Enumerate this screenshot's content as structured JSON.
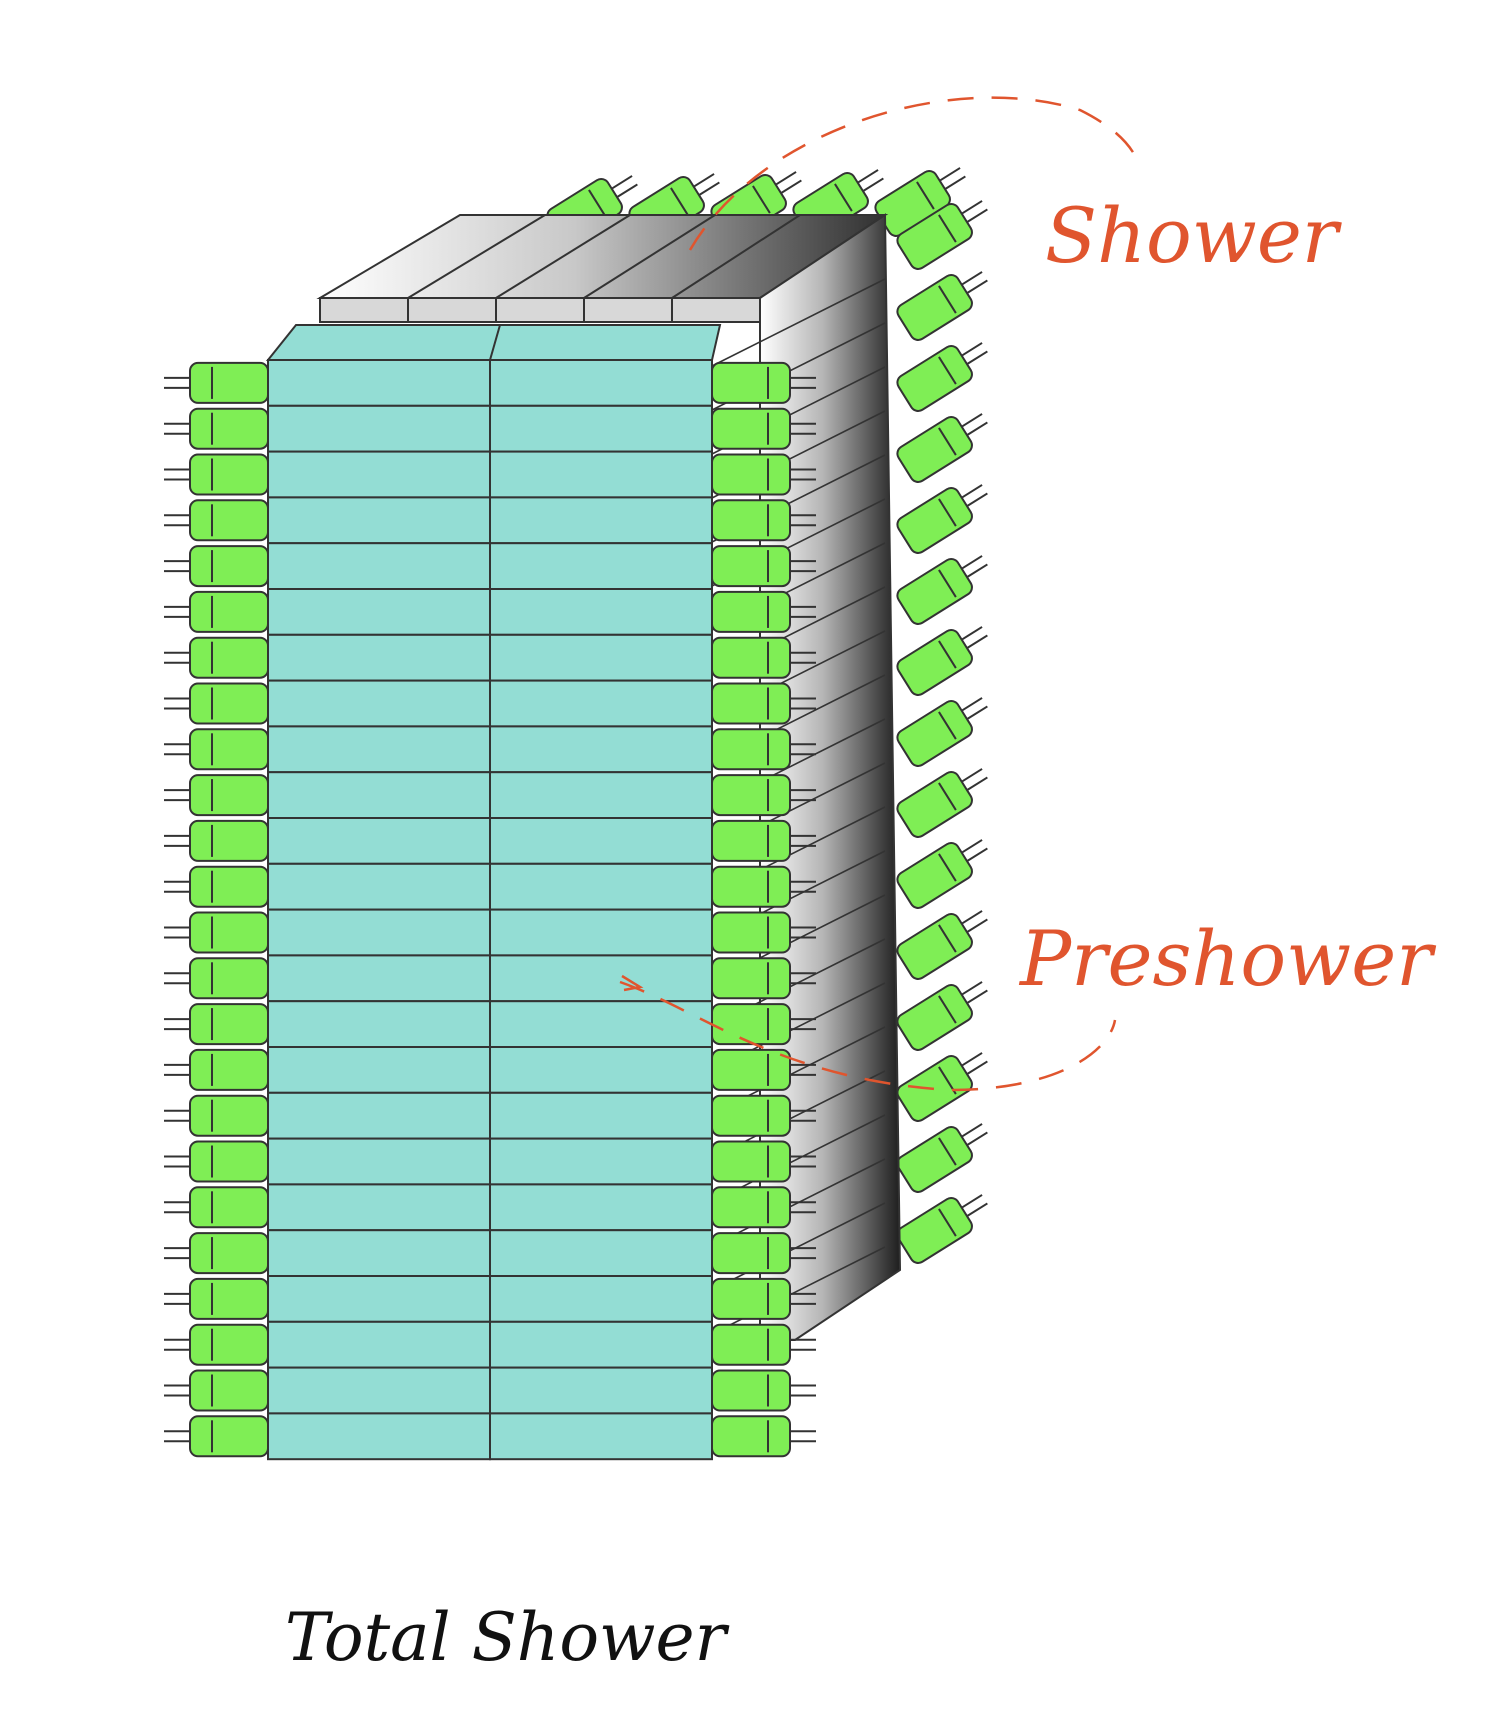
{
  "labels": {
    "shower": "Shower",
    "preshower": "Preshower",
    "total_shower": "Total Shower"
  },
  "colors": {
    "block_fill": "#93ddd4",
    "pmt_fill": "#7fee55",
    "outline": "#333333",
    "accent_label": "#e0552e",
    "black_label": "#111111"
  },
  "icons": {
    "pmt": "photomultiplier-tube-icon"
  },
  "structure": {
    "front_columns": 2,
    "front_rows": 24,
    "top_blocks": 5,
    "side_rows": 24,
    "back_pmt_rows": 15,
    "top_pmts": 5
  }
}
